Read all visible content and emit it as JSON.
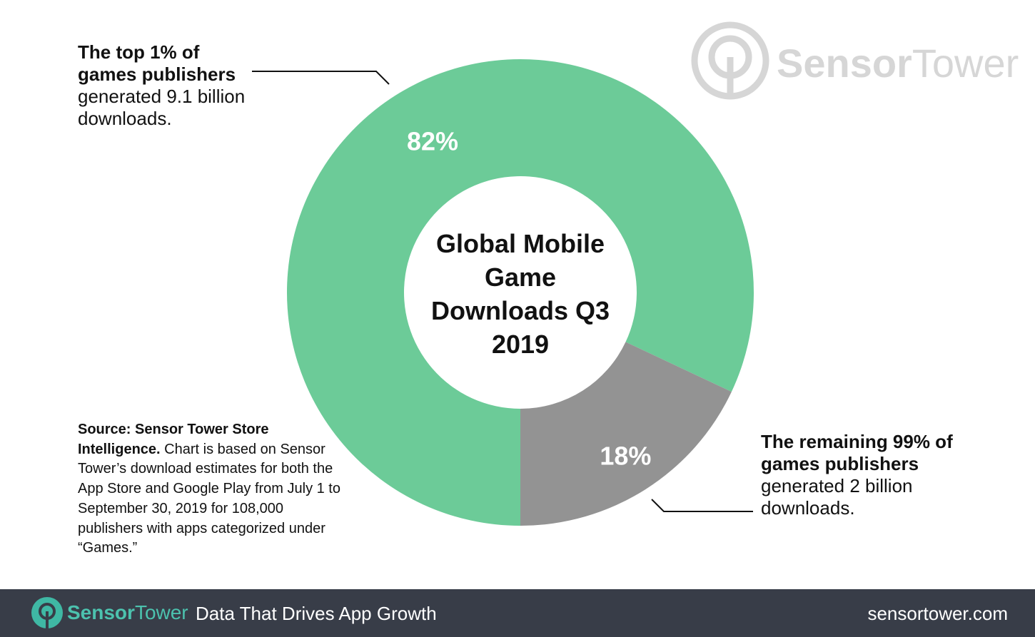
{
  "chart_data": {
    "type": "donut",
    "title": "Global Mobile Game Downloads Q3 2019",
    "categories": [
      "The top 1% of games publishers",
      "The remaining 99% of games publishers"
    ],
    "annotations": [
      "generated 9.1 billion downloads.",
      "generated 2 billion downloads."
    ],
    "values": [
      82,
      18
    ],
    "value_labels": [
      "82%",
      "18%"
    ],
    "colors": [
      "#6ccb98",
      "#939393"
    ],
    "source": {
      "bold": "Source: Sensor Tower Store Intelligence.",
      "text": "Chart is based on Sensor Tower’s download estimates for both the App Store and Google Play from July 1 to September 30, 2019 for 108,000 publishers with apps categorized under “Games.”"
    }
  },
  "watermark": [
    "Sensor",
    "Tower"
  ],
  "footer": {
    "brand": [
      "Sensor",
      "Tower"
    ],
    "tagline": "Data That Drives App Growth",
    "url": "sensortower.com"
  }
}
